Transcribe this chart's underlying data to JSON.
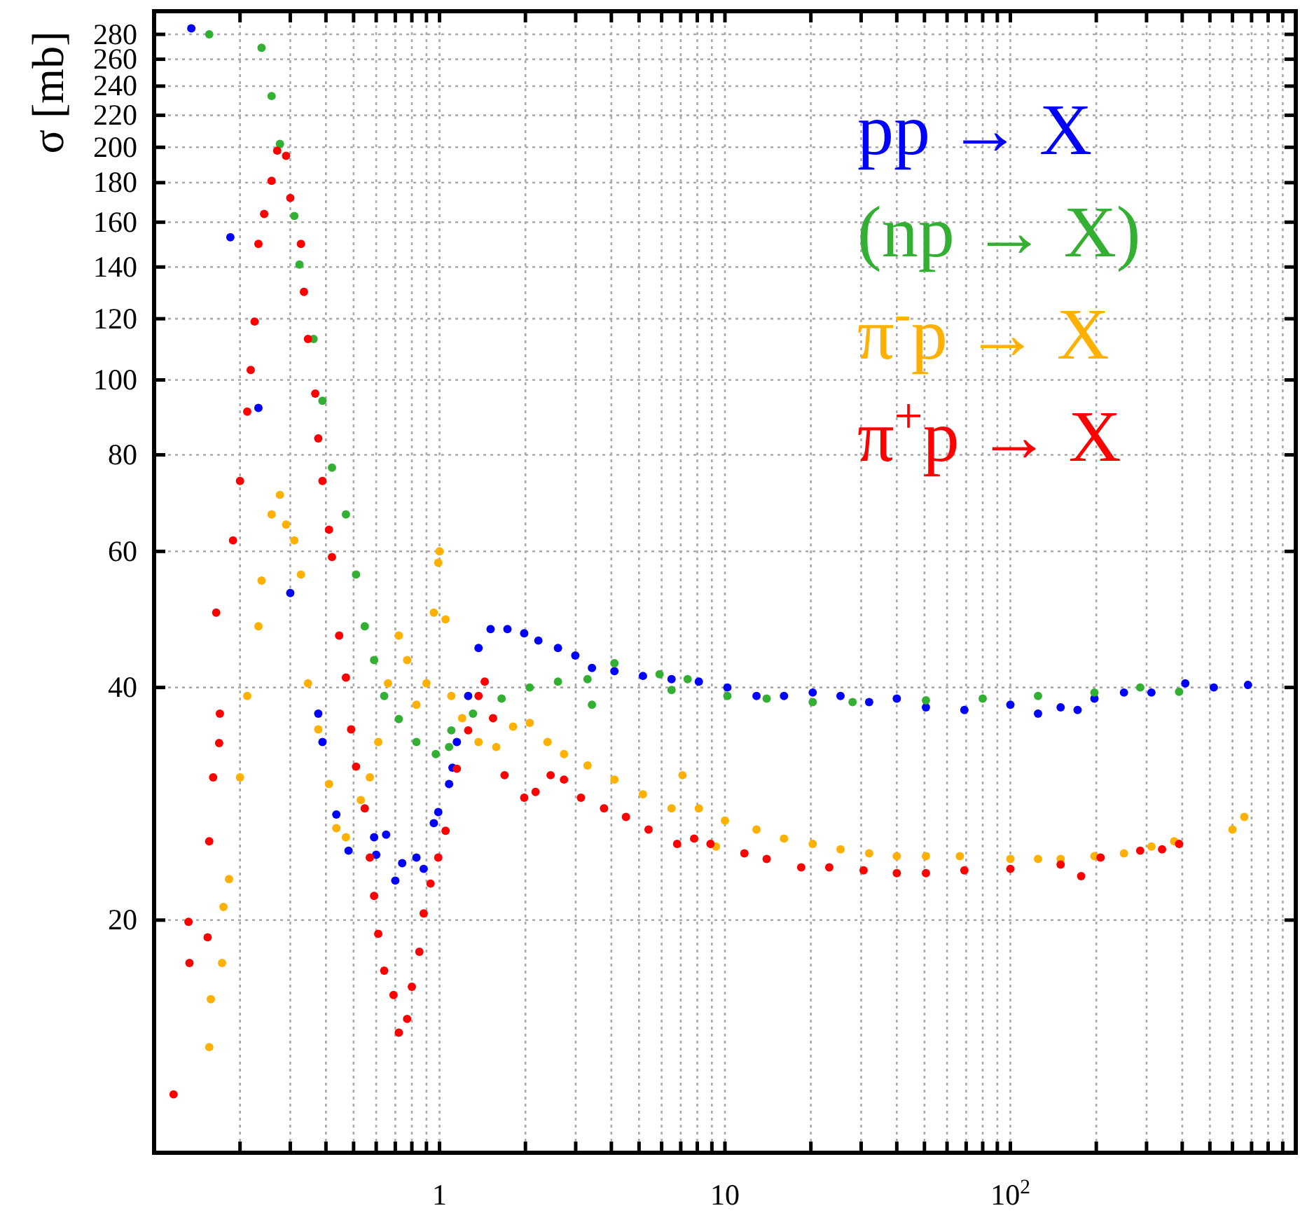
{
  "chart_data": {
    "type": "scatter",
    "ylabel": "σ [mb]",
    "log": "xy",
    "grid": true,
    "legend": "top right",
    "marker": "circle",
    "xlim": [
      0.1,
      1000
    ],
    "ylim": [
      10,
      300
    ],
    "xticks": [
      {
        "value": 0.2,
        "label": null
      },
      {
        "value": 0.3,
        "label": null
      },
      {
        "value": 0.4,
        "label": null
      },
      {
        "value": 0.5,
        "label": null
      },
      {
        "value": 0.6,
        "label": null
      },
      {
        "value": 0.7,
        "label": null
      },
      {
        "value": 0.8,
        "label": null
      },
      {
        "value": 0.9,
        "label": null
      },
      1,
      {
        "value": 2,
        "label": null
      },
      {
        "value": 3,
        "label": null
      },
      {
        "value": 4,
        "label": null
      },
      {
        "value": 5,
        "label": null
      },
      {
        "value": 6,
        "label": null
      },
      {
        "value": 7,
        "label": null
      },
      {
        "value": 8,
        "label": null
      },
      {
        "value": 9,
        "label": null
      },
      10,
      {
        "value": 20,
        "label": null
      },
      {
        "value": 30,
        "label": null
      },
      {
        "value": 40,
        "label": null
      },
      {
        "value": 50,
        "label": null
      },
      {
        "value": 60,
        "label": null
      },
      {
        "value": 70,
        "label": null
      },
      {
        "value": 80,
        "label": null
      },
      {
        "value": 90,
        "label": null
      },
      {
        "value": 100,
        "label": "10$^{2}$"
      },
      {
        "value": 200,
        "label": null
      },
      {
        "value": 300,
        "label": null
      },
      {
        "value": 400,
        "label": null
      },
      {
        "value": 500,
        "label": null
      },
      {
        "value": 600,
        "label": null
      },
      {
        "value": 700,
        "label": null
      },
      {
        "value": 800,
        "label": null
      },
      {
        "value": 900,
        "label": null
      }
    ],
    "yticks": [
      20,
      40,
      60,
      80,
      100,
      120,
      140,
      160,
      180,
      200,
      220,
      240,
      260,
      280
    ],
    "series": [
      {
        "name": "pp → X",
        "color": "#0000ff",
        "x": [
          0.135,
          0.185,
          0.232,
          0.3,
          0.376,
          0.389,
          0.435,
          0.48,
          0.59,
          0.6,
          0.65,
          0.7,
          0.74,
          0.83,
          0.88,
          0.955,
          0.99,
          1.08,
          1.11,
          1.15,
          1.26,
          1.37,
          1.51,
          1.73,
          1.98,
          2.22,
          2.6,
          2.99,
          3.42,
          4.1,
          5.16,
          6.5,
          8.1,
          10.2,
          12.9,
          16.1,
          20.3,
          25.4,
          32,
          40,
          50.6,
          69,
          100,
          125,
          150,
          172,
          197,
          250,
          312,
          410,
          516,
          680
        ],
        "values": [
          285,
          153,
          92,
          53,
          37,
          34,
          27.4,
          24.6,
          25.6,
          24.3,
          25.8,
          22.5,
          23.7,
          24.1,
          23.3,
          26.7,
          27.6,
          30,
          31.5,
          34,
          39,
          45,
          47.6,
          47.6,
          47,
          46,
          45,
          44,
          42.4,
          42,
          41.4,
          41,
          40.7,
          40,
          39,
          39,
          39.4,
          39,
          38.3,
          38.7,
          37.7,
          37.4,
          38,
          37,
          37.7,
          37.4,
          38.7,
          39.4,
          39.4,
          40.5,
          40,
          40.3
        ]
      },
      {
        "name": "(np → X)",
        "color": "#33b033",
        "x": [
          0.156,
          0.238,
          0.258,
          0.276,
          0.31,
          0.323,
          0.362,
          0.389,
          0.42,
          0.47,
          0.51,
          0.547,
          0.59,
          0.64,
          0.72,
          0.83,
          0.97,
          1.08,
          1.1,
          1.31,
          1.65,
          2.07,
          2.6,
          3.3,
          3.42,
          4.1,
          5.9,
          6.5,
          7.4,
          10.2,
          14,
          20.3,
          28,
          50.6,
          80,
          125,
          197,
          285,
          390
        ],
        "values": [
          280,
          269,
          233,
          202,
          163,
          141,
          113,
          94,
          77,
          67,
          56,
          48,
          43.4,
          39,
          36.4,
          34,
          32.8,
          33.5,
          35.2,
          37,
          38.7,
          40,
          40.7,
          41,
          38,
          43,
          41.6,
          39.7,
          41,
          39,
          38.7,
          38.3,
          38.3,
          38.5,
          38.7,
          39,
          39.4,
          40,
          39.5
        ]
      },
      {
        "name": "π$^{-}$p → X",
        "color": "#ffb000",
        "x": [
          0.156,
          0.158,
          0.173,
          0.175,
          0.183,
          0.2,
          0.212,
          0.232,
          0.238,
          0.258,
          0.276,
          0.29,
          0.31,
          0.327,
          0.346,
          0.376,
          0.41,
          0.435,
          0.47,
          0.53,
          0.57,
          0.61,
          0.66,
          0.72,
          0.77,
          0.83,
          0.9,
          0.955,
          0.99,
          1.0,
          1.05,
          1.1,
          1.2,
          1.37,
          1.58,
          1.81,
          2.07,
          2.39,
          2.73,
          3.3,
          4.1,
          5.16,
          6.5,
          7.1,
          8.1,
          9.3,
          10,
          12.9,
          16.1,
          20.3,
          25.4,
          32,
          40,
          50.6,
          66.5,
          100,
          125,
          150,
          197,
          250,
          312,
          375,
          600,
          660
        ],
        "values": [
          13.7,
          15.8,
          17.6,
          20.8,
          22.6,
          30.6,
          39,
          48,
          55,
          67,
          71,
          65,
          62,
          56,
          40.5,
          35.3,
          30,
          26.3,
          25.6,
          28.6,
          30.6,
          34,
          40.5,
          46.7,
          43.4,
          38,
          40.5,
          50,
          58,
          60,
          49,
          39,
          36.5,
          34,
          33.5,
          35.6,
          36,
          34,
          32.8,
          31.7,
          30.4,
          29.1,
          27.9,
          30.8,
          27.9,
          24.9,
          26.9,
          26.2,
          25.5,
          25.1,
          24.7,
          24.4,
          24.2,
          24.2,
          24.2,
          24,
          24,
          24,
          24.2,
          24.4,
          24.9,
          25.3,
          26.2,
          27.2
        ]
      },
      {
        "name": "π$^{+}$p → X",
        "color": "#ff0000",
        "x": [
          0.117,
          0.132,
          0.133,
          0.154,
          0.156,
          0.161,
          0.165,
          0.169,
          0.17,
          0.189,
          0.2,
          0.212,
          0.218,
          0.225,
          0.232,
          0.243,
          0.258,
          0.27,
          0.29,
          0.3,
          0.327,
          0.335,
          0.346,
          0.367,
          0.376,
          0.389,
          0.41,
          0.42,
          0.445,
          0.47,
          0.49,
          0.51,
          0.547,
          0.57,
          0.59,
          0.61,
          0.64,
          0.69,
          0.72,
          0.77,
          0.8,
          0.85,
          0.88,
          0.93,
          0.99,
          1.05,
          1.15,
          1.26,
          1.37,
          1.44,
          1.54,
          1.69,
          1.98,
          2.17,
          2.45,
          2.73,
          3.13,
          3.77,
          4.5,
          5.4,
          6.8,
          7.8,
          8.9,
          11.7,
          14,
          18.5,
          23.2,
          30.6,
          40,
          50.6,
          69,
          100,
          150,
          177,
          207,
          285,
          340,
          390
        ],
        "values": [
          11.9,
          19.9,
          17.6,
          19,
          25.3,
          30.6,
          50,
          33.9,
          37,
          62,
          74,
          91,
          103,
          119,
          150,
          164,
          181,
          198,
          195,
          172,
          150,
          130,
          113,
          96,
          84,
          74,
          64,
          59,
          46.7,
          41.2,
          35.3,
          31.6,
          27.9,
          24.1,
          21.5,
          19.2,
          17.2,
          16,
          14.3,
          14.9,
          16.4,
          18.2,
          20.4,
          22.3,
          24.1,
          26.1,
          31.4,
          35.2,
          39,
          40.7,
          36.5,
          30.8,
          28.8,
          29.3,
          30.8,
          30.4,
          28.8,
          27.9,
          27.2,
          26.2,
          25.1,
          25.5,
          25.1,
          24.4,
          24,
          23.4,
          23.4,
          23.2,
          23,
          23,
          23.2,
          23.3,
          23.6,
          22.8,
          24.1,
          24.6,
          24.7,
          25.1
        ]
      }
    ]
  }
}
